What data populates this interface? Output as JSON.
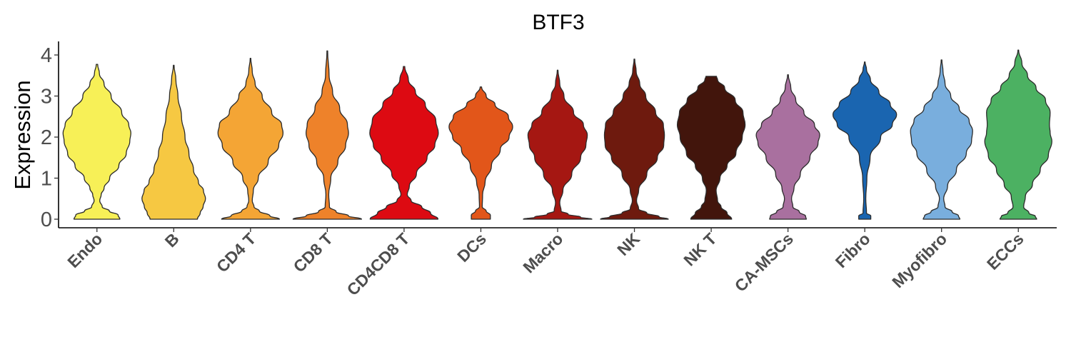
{
  "chart_data": {
    "type": "violin",
    "title": "BTF3",
    "xlabel": "",
    "ylabel": "Expression",
    "ylim": [
      -0.2,
      4.3
    ],
    "yticks": [
      0,
      1,
      2,
      3,
      4
    ],
    "grid": false,
    "legend": "none",
    "categories": [
      "Endo",
      "B",
      "CD4 T",
      "CD8 T",
      "CD4CD8 T",
      "DCs",
      "Macro",
      "NK",
      "NK T",
      "CA-MSCs",
      "Fibro",
      "Myofibro",
      "ECCs"
    ],
    "series": [
      {
        "category": "Endo",
        "color": "#F7F057",
        "max": 3.77,
        "profile": [
          [
            0,
            0.65
          ],
          [
            0.1,
            0.6
          ],
          [
            0.2,
            0.35
          ],
          [
            0.3,
            0.15
          ],
          [
            0.45,
            0.08
          ],
          [
            0.6,
            0.12
          ],
          [
            0.75,
            0.2
          ],
          [
            1.0,
            0.36
          ],
          [
            1.3,
            0.62
          ],
          [
            1.6,
            0.83
          ],
          [
            1.9,
            0.93
          ],
          [
            2.1,
            0.96
          ],
          [
            2.3,
            0.9
          ],
          [
            2.6,
            0.7
          ],
          [
            3.0,
            0.4
          ],
          [
            3.3,
            0.2
          ],
          [
            3.55,
            0.07
          ],
          [
            3.77,
            0.02
          ]
        ]
      },
      {
        "category": "B",
        "color": "#F6C842",
        "max": 3.75,
        "profile": [
          [
            0,
            0.67
          ],
          [
            0.15,
            0.75
          ],
          [
            0.3,
            0.83
          ],
          [
            0.5,
            0.9
          ],
          [
            0.7,
            0.84
          ],
          [
            0.9,
            0.7
          ],
          [
            1.2,
            0.56
          ],
          [
            1.6,
            0.43
          ],
          [
            2.0,
            0.32
          ],
          [
            2.5,
            0.22
          ],
          [
            3.0,
            0.12
          ],
          [
            3.4,
            0.06
          ],
          [
            3.75,
            0.01
          ]
        ]
      },
      {
        "category": "CD4 T",
        "color": "#F4A535",
        "max": 3.92,
        "profile": [
          [
            0,
            0.82
          ],
          [
            0.08,
            0.55
          ],
          [
            0.2,
            0.25
          ],
          [
            0.3,
            0.1
          ],
          [
            0.45,
            0.05
          ],
          [
            0.7,
            0.08
          ],
          [
            1.0,
            0.22
          ],
          [
            1.4,
            0.5
          ],
          [
            1.8,
            0.8
          ],
          [
            2.1,
            0.92
          ],
          [
            2.3,
            0.88
          ],
          [
            2.6,
            0.6
          ],
          [
            3.0,
            0.33
          ],
          [
            3.3,
            0.13
          ],
          [
            3.6,
            0.05
          ],
          [
            3.92,
            0.01
          ]
        ]
      },
      {
        "category": "CD8 T",
        "color": "#EE822A",
        "max": 4.1,
        "profile": [
          [
            0,
            0.97
          ],
          [
            0.08,
            0.6
          ],
          [
            0.18,
            0.25
          ],
          [
            0.3,
            0.06
          ],
          [
            0.6,
            0.04
          ],
          [
            1.0,
            0.1
          ],
          [
            1.4,
            0.3
          ],
          [
            1.8,
            0.52
          ],
          [
            2.1,
            0.6
          ],
          [
            2.3,
            0.57
          ],
          [
            2.7,
            0.35
          ],
          [
            3.1,
            0.15
          ],
          [
            3.5,
            0.05
          ],
          [
            4.1,
            0.01
          ]
        ]
      },
      {
        "category": "CD4CD8 T",
        "color": "#DD0A12",
        "max": 3.72,
        "profile": [
          [
            0,
            0.96
          ],
          [
            0.15,
            0.75
          ],
          [
            0.3,
            0.5
          ],
          [
            0.45,
            0.2
          ],
          [
            0.6,
            0.09
          ],
          [
            0.8,
            0.15
          ],
          [
            1.1,
            0.35
          ],
          [
            1.5,
            0.65
          ],
          [
            1.8,
            0.87
          ],
          [
            2.1,
            0.97
          ],
          [
            2.4,
            0.9
          ],
          [
            2.8,
            0.6
          ],
          [
            3.1,
            0.32
          ],
          [
            3.4,
            0.12
          ],
          [
            3.72,
            0.02
          ]
        ]
      },
      {
        "category": "DCs",
        "color": "#E2561A",
        "max": 3.22,
        "profile": [
          [
            0,
            0.27
          ],
          [
            0.1,
            0.27
          ],
          [
            0.2,
            0.15
          ],
          [
            0.3,
            0.04
          ],
          [
            0.6,
            0.05
          ],
          [
            0.9,
            0.12
          ],
          [
            1.3,
            0.3
          ],
          [
            1.7,
            0.55
          ],
          [
            2.0,
            0.8
          ],
          [
            2.25,
            0.9
          ],
          [
            2.5,
            0.78
          ],
          [
            2.8,
            0.4
          ],
          [
            3.0,
            0.15
          ],
          [
            3.22,
            0.02
          ]
        ]
      },
      {
        "category": "Macro",
        "color": "#A51712",
        "max": 3.63,
        "profile": [
          [
            0,
            0.97
          ],
          [
            0.05,
            0.65
          ],
          [
            0.12,
            0.3
          ],
          [
            0.2,
            0.1
          ],
          [
            0.4,
            0.06
          ],
          [
            0.7,
            0.15
          ],
          [
            1.1,
            0.4
          ],
          [
            1.5,
            0.65
          ],
          [
            1.8,
            0.8
          ],
          [
            2.05,
            0.84
          ],
          [
            2.3,
            0.73
          ],
          [
            2.6,
            0.45
          ],
          [
            3.0,
            0.18
          ],
          [
            3.3,
            0.06
          ],
          [
            3.63,
            0.01
          ]
        ]
      },
      {
        "category": "NK",
        "color": "#6E1A0E",
        "max": 3.9,
        "profile": [
          [
            0,
            0.96
          ],
          [
            0.06,
            0.7
          ],
          [
            0.15,
            0.35
          ],
          [
            0.25,
            0.12
          ],
          [
            0.45,
            0.06
          ],
          [
            0.7,
            0.12
          ],
          [
            1.1,
            0.35
          ],
          [
            1.5,
            0.65
          ],
          [
            1.8,
            0.83
          ],
          [
            2.05,
            0.85
          ],
          [
            2.3,
            0.82
          ],
          [
            2.6,
            0.6
          ],
          [
            3.0,
            0.32
          ],
          [
            3.3,
            0.15
          ],
          [
            3.6,
            0.05
          ],
          [
            3.9,
            0.01
          ]
        ]
      },
      {
        "category": "NK T",
        "color": "#42150C",
        "max": 3.48,
        "profile": [
          [
            0,
            0.58
          ],
          [
            0.15,
            0.45
          ],
          [
            0.3,
            0.28
          ],
          [
            0.45,
            0.18
          ],
          [
            0.7,
            0.14
          ],
          [
            1.0,
            0.25
          ],
          [
            1.3,
            0.45
          ],
          [
            1.6,
            0.7
          ],
          [
            2.0,
            0.88
          ],
          [
            2.3,
            0.96
          ],
          [
            2.6,
            0.9
          ],
          [
            2.9,
            0.68
          ],
          [
            3.2,
            0.38
          ],
          [
            3.4,
            0.18
          ],
          [
            3.48,
            0.15
          ]
        ]
      },
      {
        "category": "CA-MSCs",
        "color": "#A9709F",
        "max": 3.52,
        "profile": [
          [
            0,
            0.52
          ],
          [
            0.07,
            0.5
          ],
          [
            0.18,
            0.32
          ],
          [
            0.3,
            0.14
          ],
          [
            0.5,
            0.1
          ],
          [
            0.75,
            0.17
          ],
          [
            1.1,
            0.35
          ],
          [
            1.5,
            0.62
          ],
          [
            1.85,
            0.85
          ],
          [
            2.05,
            0.9
          ],
          [
            2.3,
            0.75
          ],
          [
            2.6,
            0.45
          ],
          [
            2.9,
            0.22
          ],
          [
            3.2,
            0.08
          ],
          [
            3.52,
            0.01
          ]
        ]
      },
      {
        "category": "Fibro",
        "color": "#1A65B0",
        "max": 3.83,
        "profile": [
          [
            0,
            0.17
          ],
          [
            0.08,
            0.17
          ],
          [
            0.15,
            0.05
          ],
          [
            0.5,
            0.03
          ],
          [
            1.0,
            0.06
          ],
          [
            1.5,
            0.15
          ],
          [
            2.0,
            0.45
          ],
          [
            2.3,
            0.78
          ],
          [
            2.55,
            0.9
          ],
          [
            2.8,
            0.72
          ],
          [
            3.1,
            0.4
          ],
          [
            3.4,
            0.16
          ],
          [
            3.65,
            0.05
          ],
          [
            3.83,
            0.01
          ]
        ]
      },
      {
        "category": "Myofibro",
        "color": "#79AEDD",
        "max": 3.88,
        "profile": [
          [
            0,
            0.52
          ],
          [
            0.08,
            0.48
          ],
          [
            0.18,
            0.3
          ],
          [
            0.3,
            0.1
          ],
          [
            0.5,
            0.06
          ],
          [
            0.8,
            0.17
          ],
          [
            1.2,
            0.42
          ],
          [
            1.6,
            0.7
          ],
          [
            1.9,
            0.85
          ],
          [
            2.15,
            0.88
          ],
          [
            2.4,
            0.78
          ],
          [
            2.7,
            0.5
          ],
          [
            3.0,
            0.26
          ],
          [
            3.3,
            0.1
          ],
          [
            3.6,
            0.04
          ],
          [
            3.88,
            0.01
          ]
        ]
      },
      {
        "category": "ECCs",
        "color": "#4CB162",
        "max": 4.12,
        "profile": [
          [
            0,
            0.52
          ],
          [
            0.07,
            0.48
          ],
          [
            0.15,
            0.3
          ],
          [
            0.3,
            0.15
          ],
          [
            0.55,
            0.2
          ],
          [
            0.85,
            0.4
          ],
          [
            1.2,
            0.62
          ],
          [
            1.55,
            0.85
          ],
          [
            1.9,
            0.95
          ],
          [
            2.1,
            0.9
          ],
          [
            2.3,
            0.88
          ],
          [
            2.6,
            0.9
          ],
          [
            2.9,
            0.77
          ],
          [
            3.2,
            0.5
          ],
          [
            3.5,
            0.26
          ],
          [
            3.8,
            0.1
          ],
          [
            4.12,
            0.01
          ]
        ]
      }
    ]
  }
}
